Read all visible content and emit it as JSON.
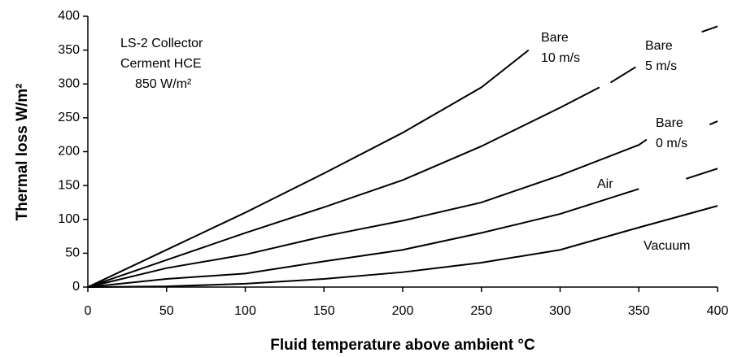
{
  "chart_data": {
    "type": "line",
    "xlabel": "Fluid temperature above ambient °C",
    "ylabel": "Thermal loss W/m²",
    "annotations": [
      "LS-2 Collector",
      "Cerment HCE",
      "850 W/m²"
    ],
    "xlim": [
      0,
      400
    ],
    "xticks": [
      0,
      50,
      100,
      150,
      200,
      250,
      300,
      350,
      400
    ],
    "ylim": [
      0,
      400
    ],
    "yticks": [
      0,
      50,
      100,
      150,
      200,
      250,
      300,
      350,
      400
    ],
    "grid": false,
    "series": [
      {
        "name": [
          "Bare",
          "10 m/s"
        ],
        "color": "#000000",
        "x": [
          0,
          50,
          100,
          150,
          200,
          250,
          280
        ],
        "values": [
          0,
          55,
          110,
          168,
          228,
          295,
          350
        ]
      },
      {
        "name": [
          "Bare",
          "5 m/s"
        ],
        "color": "#000000",
        "x": [
          0,
          50,
          100,
          150,
          200,
          250,
          300,
          325,
          null,
          332,
          348,
          null,
          390,
          400
        ],
        "values": [
          0,
          40,
          80,
          118,
          158,
          208,
          265,
          295,
          null,
          302,
          325,
          null,
          377,
          385
        ]
      },
      {
        "name": [
          "Bare",
          "0 m/s"
        ],
        "color": "#000000",
        "x": [
          0,
          50,
          100,
          150,
          200,
          250,
          300,
          350,
          355,
          null,
          395,
          400
        ],
        "values": [
          0,
          28,
          48,
          75,
          98,
          125,
          165,
          210,
          218,
          null,
          240,
          245
        ]
      },
      {
        "name": [
          "Air"
        ],
        "color": "#000000",
        "x": [
          0,
          50,
          100,
          150,
          200,
          250,
          300,
          350,
          null,
          380,
          400
        ],
        "values": [
          0,
          12,
          20,
          38,
          55,
          80,
          108,
          145,
          null,
          160,
          175
        ]
      },
      {
        "name": [
          "Vacuum"
        ],
        "color": "#000000",
        "x": [
          0,
          50,
          100,
          150,
          200,
          250,
          300,
          350,
          400
        ],
        "values": [
          0,
          1,
          5,
          12,
          22,
          36,
          55,
          88,
          120
        ]
      }
    ]
  }
}
